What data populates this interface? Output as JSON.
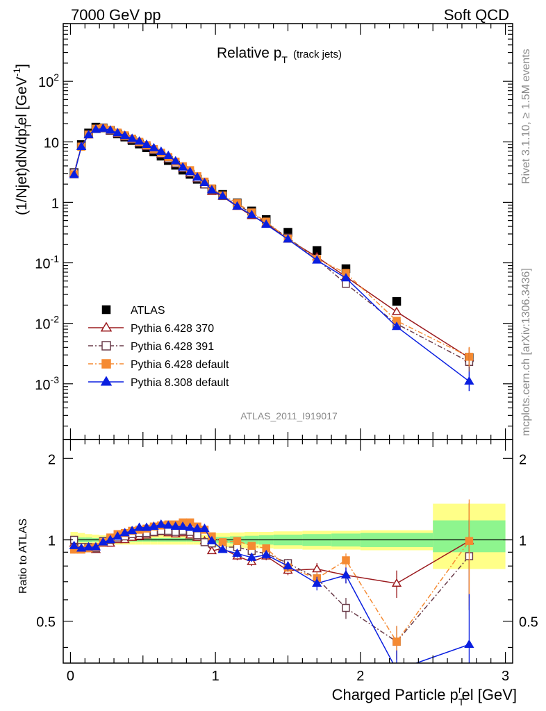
{
  "header": {
    "left": "7000 GeV pp",
    "right": "Soft QCD"
  },
  "side_text": {
    "rivet": "Rivet 3.1.10, ≥ 1.5M events",
    "mcplots": "mcplots.cern.ch [arXiv:1306.3436]"
  },
  "main": {
    "title_main": "Relative p",
    "title_sub": "T",
    "title_small": "(track jets)",
    "ylabel": "(1/Njet)dN/dp",
    "ylabel_sub": "T",
    "ylabel_sup": "r",
    "ylabel_tail": "el [GeV",
    "ylabel_unit_sup": "-1",
    "ylabel_close": "]",
    "analysis_id": "ATLAS_2011_I919017",
    "ytick_labels": [
      {
        "base": "10",
        "exp": "-3",
        "v": 0.001
      },
      {
        "base": "10",
        "exp": "-2",
        "v": 0.01
      },
      {
        "base": "10",
        "exp": "-1",
        "v": 0.1
      },
      {
        "base": "1",
        "exp": "",
        "v": 1
      },
      {
        "base": "10",
        "exp": "",
        "v": 10
      },
      {
        "base": "10",
        "exp": "2",
        "v": 100
      }
    ]
  },
  "ratio": {
    "ylabel": "Ratio to ATLAS",
    "ytick_labels": [
      "0.5",
      "1",
      "2"
    ],
    "xlabel": "Charged Particle p",
    "xlabel_sub": "T",
    "xlabel_sup": "r",
    "xlabel_tail": "el [GeV]",
    "xtick_labels": [
      "0",
      "1",
      "2",
      "3"
    ]
  },
  "legend": [
    {
      "label": "ATLAS",
      "color": "#000000",
      "marker": "square-filled",
      "line": "none"
    },
    {
      "label": "Pythia 6.428 370",
      "color": "#9b1b1f",
      "marker": "triangle-open",
      "line": "solid"
    },
    {
      "label": "Pythia 6.428 391",
      "color": "#6a3c4a",
      "marker": "square-open",
      "line": "dashdot"
    },
    {
      "label": "Pythia 6.428 default",
      "color": "#f58a32",
      "marker": "square-filled",
      "line": "dashdot"
    },
    {
      "label": "Pythia 8.308 default",
      "color": "#0a1fe0",
      "marker": "triangle-filled",
      "line": "solid"
    }
  ],
  "chart_data": [
    {
      "type": "scatter",
      "panel": "main",
      "title": "Relative pT (track jets)",
      "xlabel": "Charged Particle pTrel [GeV]",
      "ylabel": "(1/Njet)dN/dpTrel [GeV-1]",
      "xlim": [
        -0.05,
        3.05
      ],
      "ylim": [
        0.00012,
        900
      ],
      "yscale": "log",
      "grid": false,
      "legend_position": "lower-left",
      "x": [
        0.025,
        0.075,
        0.125,
        0.175,
        0.225,
        0.275,
        0.325,
        0.375,
        0.425,
        0.475,
        0.525,
        0.575,
        0.625,
        0.675,
        0.725,
        0.775,
        0.825,
        0.875,
        0.925,
        0.975,
        1.05,
        1.15,
        1.25,
        1.35,
        1.5,
        1.7,
        1.9,
        2.25,
        2.75
      ],
      "series": [
        {
          "name": "ATLAS",
          "values": [
            3.1,
            9.0,
            14.0,
            17.5,
            17.0,
            15.5,
            13.5,
            12.0,
            10.5,
            9.2,
            8.0,
            6.8,
            5.8,
            4.9,
            4.1,
            3.4,
            2.9,
            2.4,
            2.0,
            1.65,
            1.35,
            0.98,
            0.72,
            0.52,
            0.32,
            0.16,
            0.08,
            0.023,
            0.0027
          ]
        },
        {
          "name": "Pythia 6.428 370",
          "values": [
            3.0,
            8.3,
            13.0,
            16.0,
            16.5,
            15.0,
            13.5,
            12.0,
            10.7,
            9.5,
            8.3,
            7.2,
            6.2,
            5.2,
            4.3,
            3.6,
            3.0,
            2.45,
            1.98,
            1.5,
            1.25,
            0.85,
            0.6,
            0.45,
            0.245,
            0.125,
            0.059,
            0.0155,
            0.0027
          ]
        },
        {
          "name": "Pythia 6.428 391",
          "values": [
            3.1,
            8.4,
            13.2,
            16.3,
            16.8,
            15.5,
            13.8,
            12.3,
            11.0,
            9.7,
            8.5,
            7.3,
            6.3,
            5.3,
            4.4,
            3.7,
            3.1,
            2.5,
            1.98,
            1.6,
            1.27,
            0.92,
            0.66,
            0.46,
            0.26,
            0.115,
            0.045,
            0.0098,
            0.0023
          ]
        },
        {
          "name": "Pythia 6.428 default",
          "values": [
            2.9,
            8.3,
            13.2,
            16.5,
            17.0,
            15.8,
            14.2,
            12.8,
            11.3,
            10.0,
            8.8,
            7.6,
            6.6,
            5.6,
            4.7,
            3.95,
            3.4,
            2.7,
            2.2,
            1.7,
            1.3,
            0.97,
            0.68,
            0.48,
            0.25,
            0.115,
            0.068,
            0.011,
            0.0028
          ]
        },
        {
          "name": "Pythia 8.308 default",
          "values": [
            2.85,
            8.3,
            13.0,
            16.0,
            16.6,
            15.5,
            14.0,
            12.7,
            11.3,
            10.2,
            9.0,
            7.9,
            6.9,
            5.9,
            4.8,
            3.8,
            3.2,
            2.6,
            2.1,
            1.6,
            1.27,
            0.86,
            0.62,
            0.43,
            0.245,
            0.11,
            0.056,
            0.0088,
            0.0011
          ]
        }
      ]
    },
    {
      "type": "scatter",
      "panel": "ratio",
      "ylabel": "Ratio to ATLAS",
      "xlabel": "Charged Particle pTrel [GeV]",
      "xlim": [
        -0.05,
        3.05
      ],
      "ylim": [
        0.35,
        2.35
      ],
      "yscale": "log",
      "reference_line": 1,
      "x": [
        0.025,
        0.075,
        0.125,
        0.175,
        0.225,
        0.275,
        0.325,
        0.375,
        0.425,
        0.475,
        0.525,
        0.575,
        0.625,
        0.675,
        0.725,
        0.775,
        0.825,
        0.875,
        0.925,
        0.975,
        1.05,
        1.15,
        1.25,
        1.35,
        1.5,
        1.7,
        1.9,
        2.25,
        2.75
      ],
      "band_edges": [
        0.0,
        0.05,
        0.1,
        0.15,
        0.2,
        0.25,
        0.3,
        0.35,
        0.4,
        0.45,
        0.5,
        0.55,
        0.6,
        0.65,
        0.7,
        0.75,
        0.8,
        0.85,
        0.9,
        0.95,
        1.0,
        1.1,
        1.2,
        1.3,
        1.4,
        1.6,
        1.8,
        2.0,
        2.5,
        3.0
      ],
      "band_stat": [
        [
          0.98,
          1.02
        ],
        [
          0.98,
          1.02
        ],
        [
          0.98,
          1.02
        ],
        [
          0.985,
          1.015
        ],
        [
          0.985,
          1.015
        ],
        [
          0.985,
          1.015
        ],
        [
          0.985,
          1.015
        ],
        [
          0.985,
          1.015
        ],
        [
          0.985,
          1.015
        ],
        [
          0.985,
          1.015
        ],
        [
          0.985,
          1.015
        ],
        [
          0.985,
          1.015
        ],
        [
          0.985,
          1.015
        ],
        [
          0.985,
          1.015
        ],
        [
          0.985,
          1.015
        ],
        [
          0.985,
          1.015
        ],
        [
          0.985,
          1.015
        ],
        [
          0.985,
          1.015
        ],
        [
          0.985,
          1.015
        ],
        [
          0.985,
          1.015
        ],
        [
          0.975,
          1.025
        ],
        [
          0.97,
          1.03
        ],
        [
          0.965,
          1.035
        ],
        [
          0.96,
          1.04
        ],
        [
          0.955,
          1.045
        ],
        [
          0.95,
          1.05
        ],
        [
          0.945,
          1.055
        ],
        [
          0.94,
          1.06
        ],
        [
          0.9,
          1.18
        ]
      ],
      "band_total": [
        [
          0.93,
          1.07
        ],
        [
          0.94,
          1.06
        ],
        [
          0.95,
          1.05
        ],
        [
          0.955,
          1.045
        ],
        [
          0.96,
          1.04
        ],
        [
          0.96,
          1.04
        ],
        [
          0.96,
          1.04
        ],
        [
          0.96,
          1.04
        ],
        [
          0.96,
          1.04
        ],
        [
          0.96,
          1.04
        ],
        [
          0.96,
          1.04
        ],
        [
          0.96,
          1.04
        ],
        [
          0.96,
          1.04
        ],
        [
          0.96,
          1.04
        ],
        [
          0.96,
          1.04
        ],
        [
          0.96,
          1.04
        ],
        [
          0.96,
          1.04
        ],
        [
          0.96,
          1.04
        ],
        [
          0.955,
          1.045
        ],
        [
          0.95,
          1.05
        ],
        [
          0.94,
          1.06
        ],
        [
          0.935,
          1.065
        ],
        [
          0.93,
          1.07
        ],
        [
          0.93,
          1.07
        ],
        [
          0.925,
          1.075
        ],
        [
          0.92,
          1.08
        ],
        [
          0.92,
          1.08
        ],
        [
          0.915,
          1.085
        ],
        [
          0.78,
          1.36
        ]
      ],
      "series": [
        {
          "name": "Pythia 6.428 370",
          "values": [
            0.97,
            0.93,
            0.93,
            0.92,
            0.97,
            0.97,
            1.0,
            1.0,
            1.02,
            1.03,
            1.04,
            1.06,
            1.07,
            1.06,
            1.05,
            1.06,
            1.04,
            1.02,
            0.99,
            0.91,
            0.93,
            0.87,
            0.83,
            0.87,
            0.77,
            0.78,
            0.74,
            0.69,
            0.99
          ],
          "err": [
            0.03,
            0.02,
            0.02,
            0.02,
            0.02,
            0.02,
            0.02,
            0.02,
            0.02,
            0.02,
            0.02,
            0.02,
            0.02,
            0.02,
            0.02,
            0.02,
            0.02,
            0.02,
            0.02,
            0.02,
            0.02,
            0.03,
            0.03,
            0.03,
            0.03,
            0.04,
            0.05,
            0.08,
            0.38
          ]
        },
        {
          "name": "Pythia 6.428 391",
          "values": [
            1.0,
            0.94,
            0.94,
            0.93,
            0.99,
            1.0,
            1.02,
            1.03,
            1.05,
            1.06,
            1.06,
            1.07,
            1.08,
            1.08,
            1.07,
            1.08,
            1.07,
            1.04,
            0.98,
            0.97,
            0.94,
            0.94,
            0.91,
            0.89,
            0.82,
            0.72,
            0.56,
            0.42,
            0.87
          ],
          "err": [
            0.03,
            0.02,
            0.02,
            0.02,
            0.02,
            0.02,
            0.02,
            0.02,
            0.02,
            0.02,
            0.02,
            0.02,
            0.02,
            0.02,
            0.02,
            0.02,
            0.02,
            0.02,
            0.02,
            0.02,
            0.02,
            0.03,
            0.03,
            0.03,
            0.03,
            0.04,
            0.05,
            0.06,
            0.32
          ]
        },
        {
          "name": "Pythia 6.428 default",
          "values": [
            0.92,
            0.92,
            0.93,
            0.94,
            0.98,
            1.02,
            1.05,
            1.06,
            1.08,
            1.09,
            1.1,
            1.12,
            1.13,
            1.14,
            1.14,
            1.16,
            1.16,
            1.12,
            1.09,
            1.03,
            0.98,
            0.99,
            0.95,
            0.93,
            0.79,
            0.72,
            0.84,
            0.42,
            0.99
          ],
          "err": [
            0.03,
            0.02,
            0.02,
            0.02,
            0.02,
            0.02,
            0.02,
            0.02,
            0.02,
            0.02,
            0.02,
            0.02,
            0.02,
            0.02,
            0.02,
            0.02,
            0.02,
            0.02,
            0.02,
            0.02,
            0.02,
            0.03,
            0.03,
            0.03,
            0.03,
            0.04,
            0.05,
            0.06,
            0.42
          ]
        },
        {
          "name": "Pythia 8.308 default",
          "values": [
            0.95,
            0.93,
            0.94,
            0.94,
            0.98,
            1.0,
            1.03,
            1.06,
            1.08,
            1.11,
            1.11,
            1.12,
            1.14,
            1.13,
            1.12,
            1.12,
            1.11,
            1.1,
            1.1,
            0.99,
            0.92,
            0.89,
            0.86,
            0.88,
            0.8,
            0.69,
            0.74,
            0.33,
            0.41
          ],
          "err": [
            0.02,
            0.02,
            0.02,
            0.02,
            0.02,
            0.02,
            0.02,
            0.02,
            0.02,
            0.02,
            0.02,
            0.02,
            0.02,
            0.02,
            0.02,
            0.02,
            0.02,
            0.02,
            0.02,
            0.02,
            0.02,
            0.03,
            0.03,
            0.03,
            0.03,
            0.04,
            0.05,
            0.06,
            0.22
          ]
        }
      ]
    }
  ]
}
